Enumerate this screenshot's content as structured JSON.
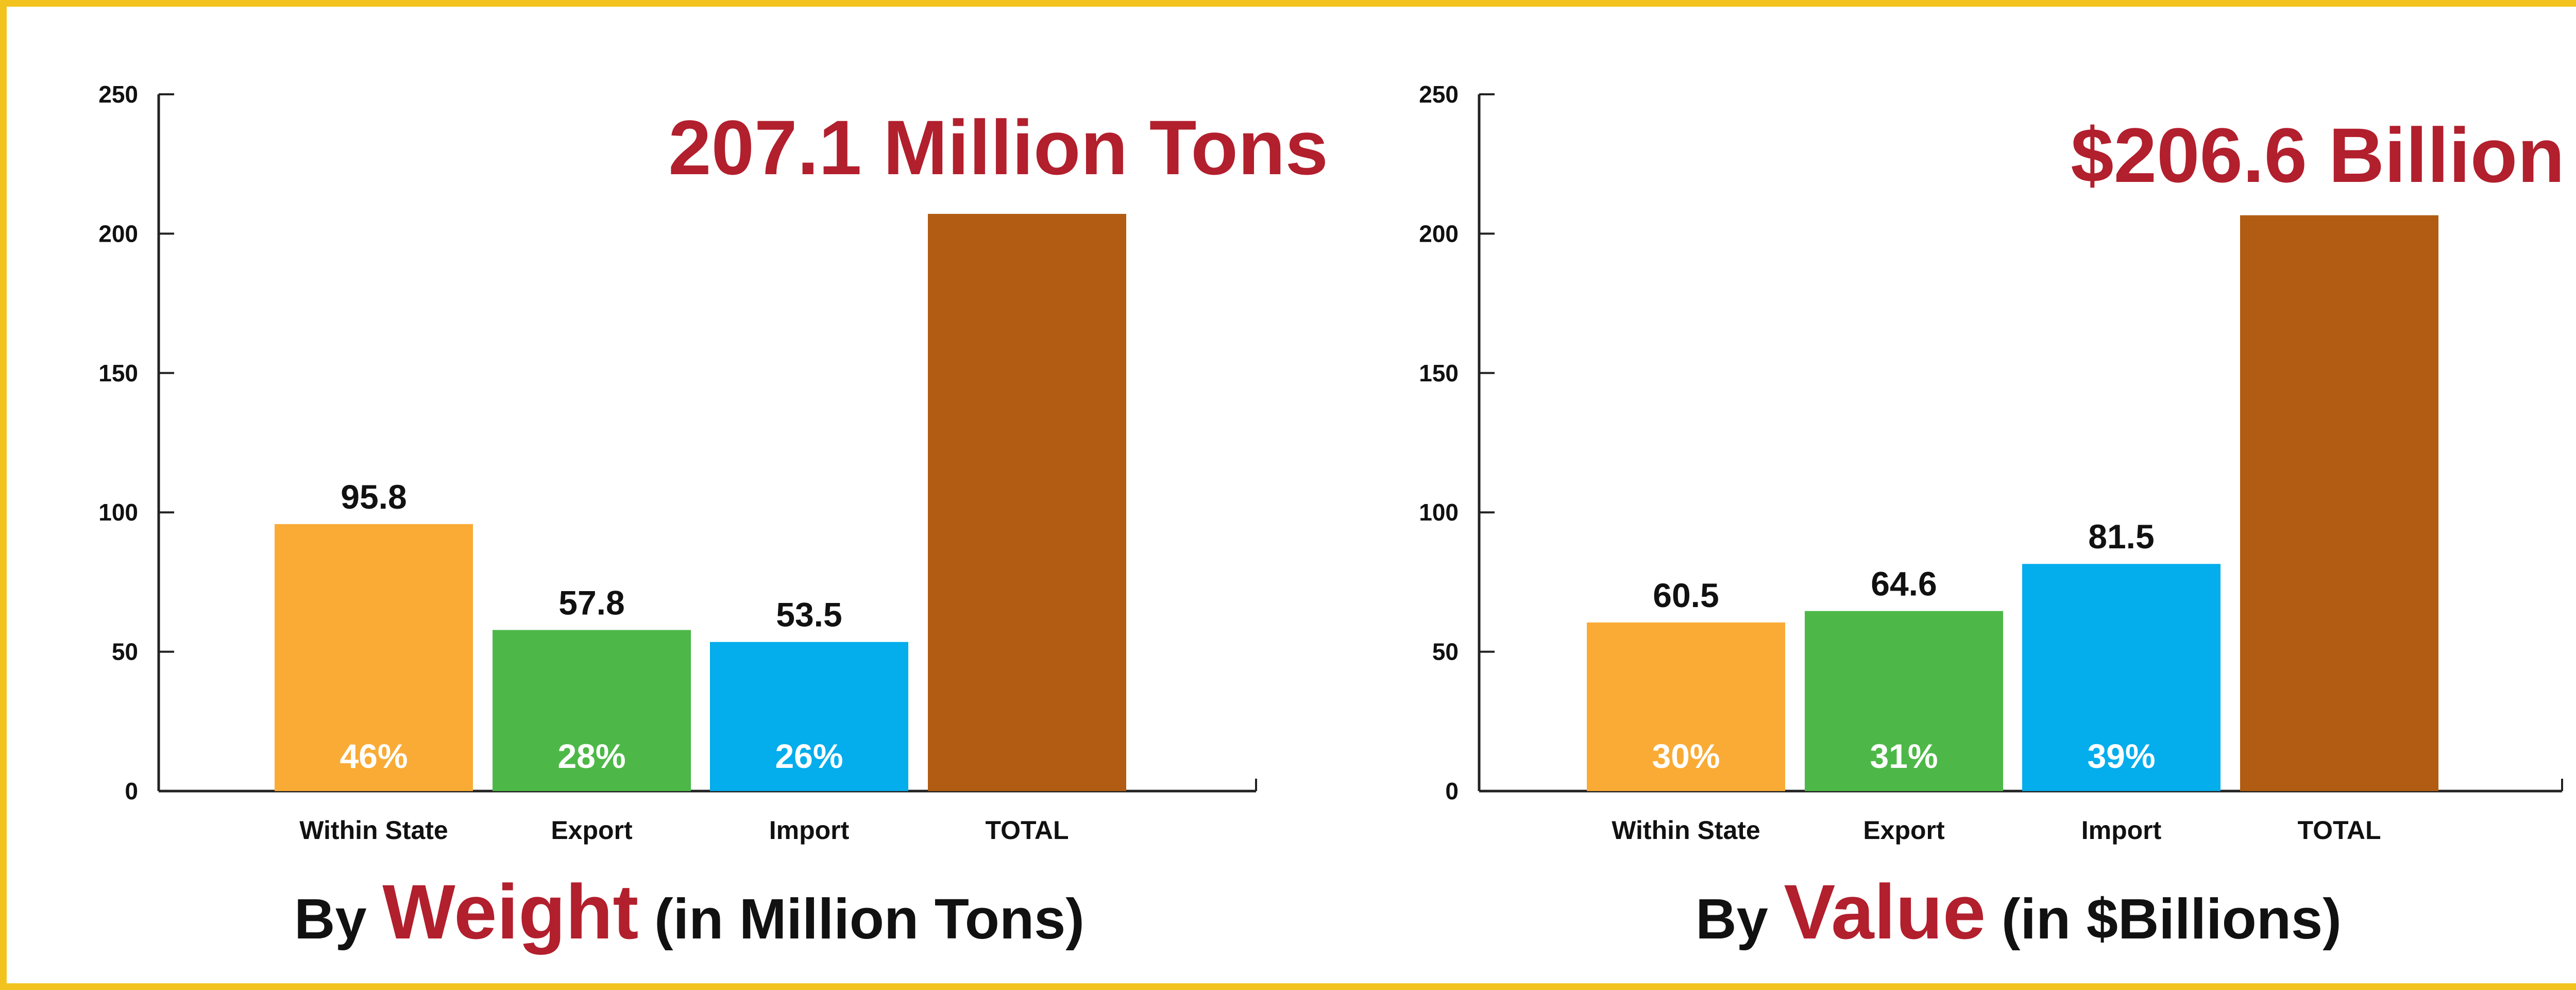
{
  "colors": {
    "frame": "#f2c31e",
    "within_state": "#f9ab35",
    "export": "#4db848",
    "import": "#04adec",
    "total": "#b15c12",
    "highlight_red": "#b21f2d",
    "axis": "#222222"
  },
  "chart_data": [
    {
      "type": "bar",
      "categories": [
        "Within State",
        "Export",
        "Import",
        "TOTAL"
      ],
      "values": [
        95.8,
        57.8,
        53.5,
        207.1
      ],
      "value_labels": [
        "95.8",
        "57.8",
        "53.5",
        ""
      ],
      "percent_labels": [
        "46%",
        "28%",
        "26%",
        ""
      ],
      "total_annotation": "207.1 Million Tons",
      "ylim": [
        0,
        250
      ],
      "yticks": [
        0,
        50,
        100,
        150,
        200,
        250
      ],
      "grid": false,
      "title_parts": {
        "prefix": "By",
        "highlight": "Weight",
        "suffix": "(in Million Tons)"
      }
    },
    {
      "type": "bar",
      "categories": [
        "Within State",
        "Export",
        "Import",
        "TOTAL"
      ],
      "values": [
        60.5,
        64.6,
        81.5,
        206.6
      ],
      "value_labels": [
        "60.5",
        "64.6",
        "81.5",
        ""
      ],
      "percent_labels": [
        "30%",
        "31%",
        "39%",
        ""
      ],
      "total_annotation": "$206.6 Billion",
      "ylim": [
        0,
        250
      ],
      "yticks": [
        0,
        50,
        100,
        150,
        200,
        250
      ],
      "grid": false,
      "title_parts": {
        "prefix": "By",
        "highlight": "Value",
        "suffix": "(in $Billions)"
      }
    }
  ]
}
